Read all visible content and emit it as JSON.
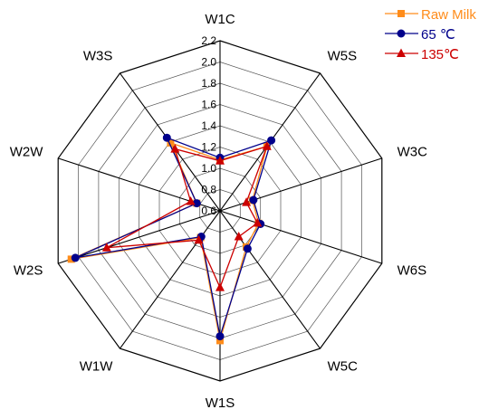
{
  "chart_data": {
    "type": "radar",
    "axes": [
      "W1C",
      "W5S",
      "W3C",
      "W6S",
      "W5C",
      "W1S",
      "W1W",
      "W2S",
      "W2W",
      "W3S"
    ],
    "scale": {
      "min": 0.6,
      "max": 2.2,
      "step": 0.2
    },
    "tick_labels": [
      "0.6",
      "0.8",
      "1.0",
      "1.2",
      "1.4",
      "1.6",
      "1.8",
      "2.0",
      "2.2"
    ],
    "series": [
      {
        "name": "Raw Milk",
        "marker": "square",
        "color": "#ff8c1a",
        "values": [
          1.08,
          1.35,
          0.92,
          0.98,
          1.02,
          1.82,
          0.91,
          2.07,
          0.83,
          1.39
        ]
      },
      {
        "name": "65 ℃",
        "marker": "circle",
        "color": "#00008b",
        "values": [
          1.1,
          1.42,
          0.93,
          1.0,
          1.04,
          1.78,
          0.9,
          2.03,
          0.83,
          1.45
        ]
      },
      {
        "name": "135℃",
        "marker": "triangle",
        "color": "#cc0000",
        "values": [
          1.07,
          1.35,
          0.86,
          0.97,
          0.9,
          1.32,
          0.94,
          1.72,
          0.89,
          1.32
        ]
      }
    ],
    "grid": true,
    "legend": "top-right"
  }
}
